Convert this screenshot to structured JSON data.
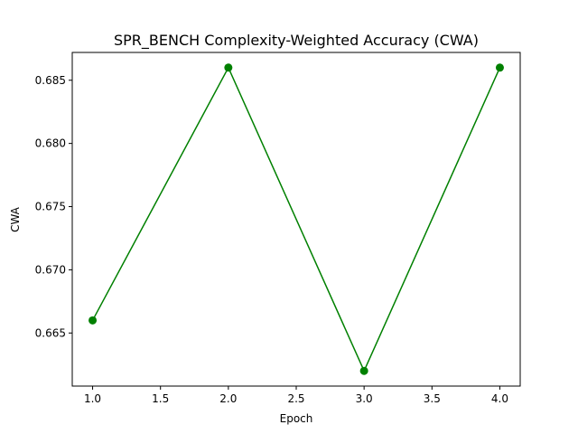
{
  "chart_data": {
    "type": "line",
    "title": "SPR_BENCH Complexity-Weighted Accuracy (CWA)",
    "xlabel": "Epoch",
    "ylabel": "CWA",
    "x": [
      1,
      2,
      3,
      4
    ],
    "series": [
      {
        "values": [
          0.666,
          0.686,
          0.662,
          0.686
        ],
        "color": "#008000",
        "marker": "circle"
      }
    ],
    "xlim": [
      0.85,
      4.15
    ],
    "ylim": [
      0.6608,
      0.6872
    ],
    "xticks": [
      1.0,
      1.5,
      2.0,
      2.5,
      3.0,
      3.5,
      4.0
    ],
    "xtick_labels": [
      "1.0",
      "1.5",
      "2.0",
      "2.5",
      "3.0",
      "3.5",
      "4.0"
    ],
    "yticks": [
      0.665,
      0.67,
      0.675,
      0.68,
      0.685
    ],
    "ytick_labels": [
      "0.665",
      "0.670",
      "0.675",
      "0.680",
      "0.685"
    ],
    "grid": false,
    "legend": false
  }
}
